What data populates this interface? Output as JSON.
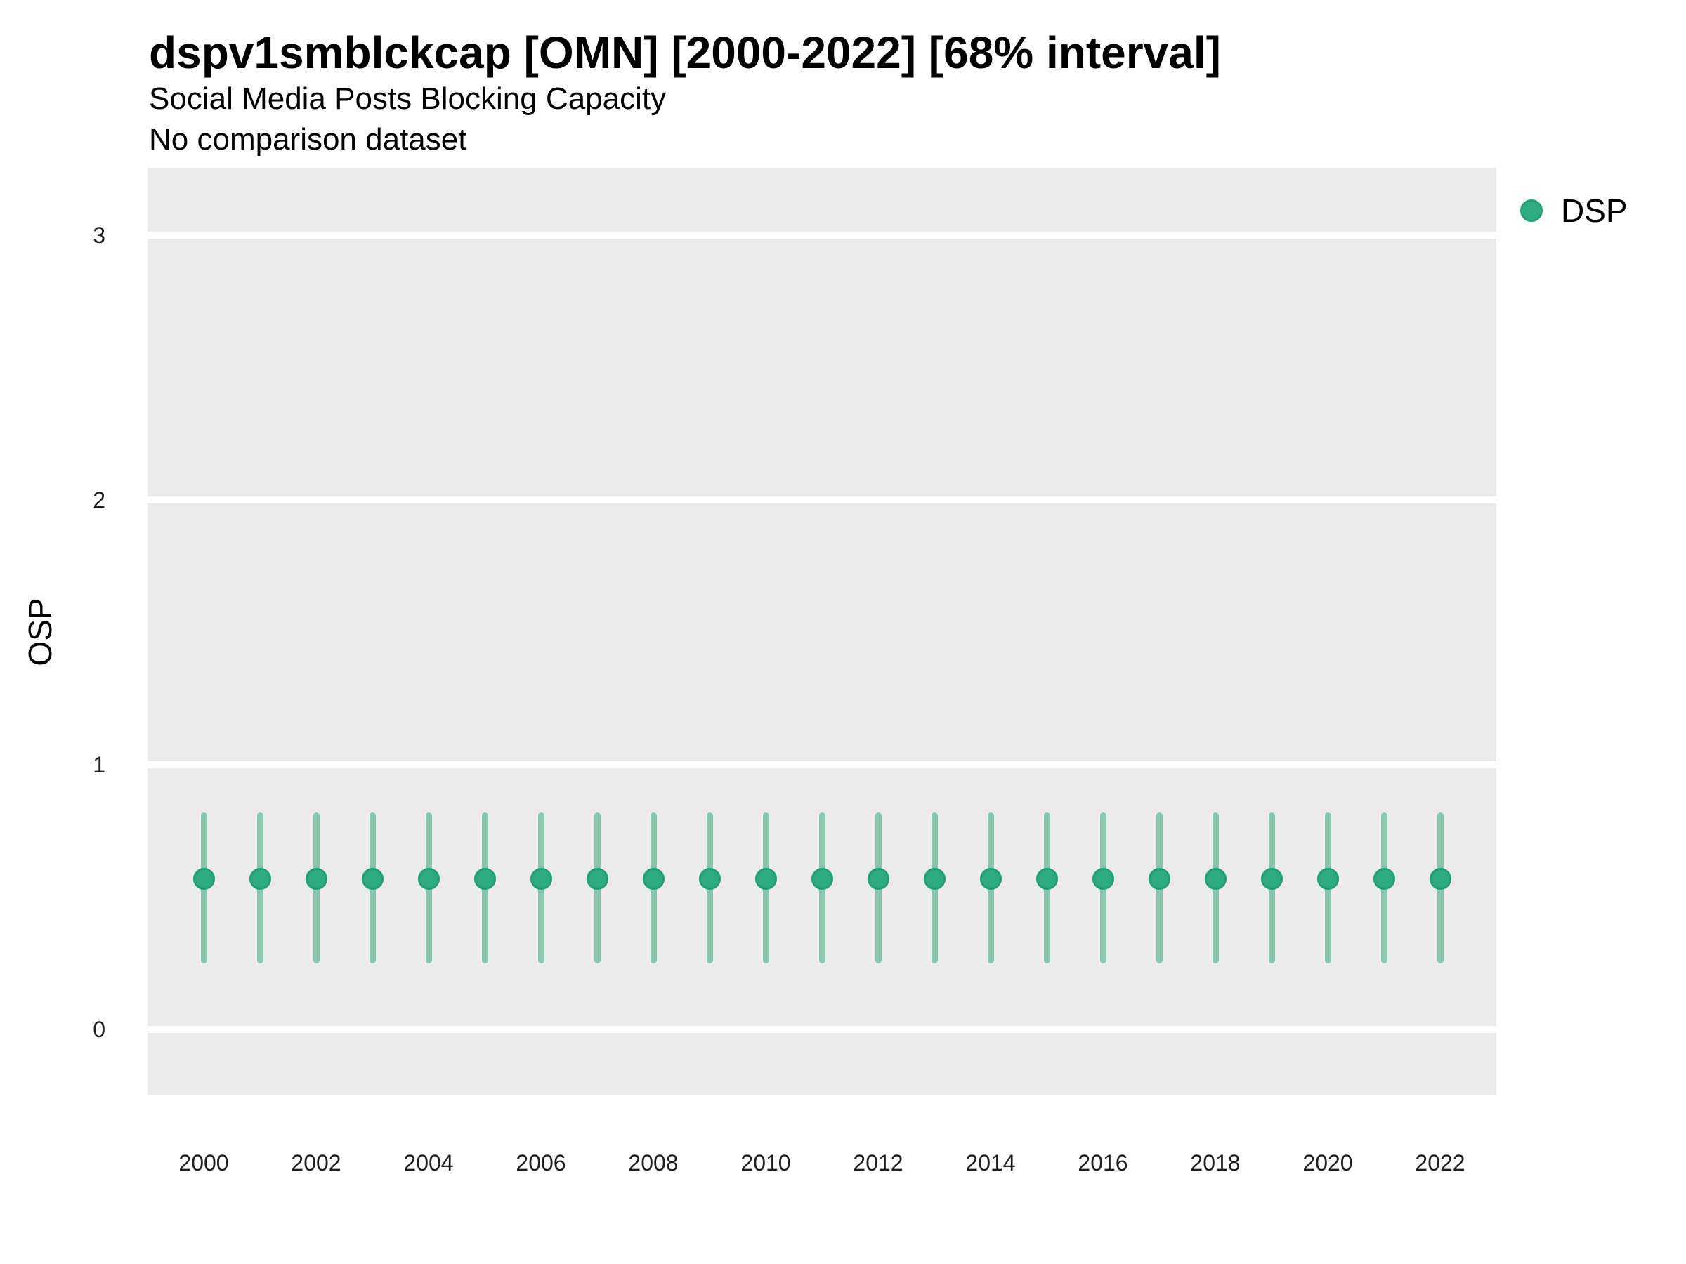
{
  "header": {
    "title": "dspv1smblckcap [OMN] [2000-2022] [68% interval]",
    "subtitle": "Social Media Posts Blocking Capacity",
    "subtitle2": "No comparison dataset"
  },
  "y_axis": {
    "label": "OSP",
    "tick_labels": [
      "0",
      "1",
      "2",
      "3"
    ],
    "tick_values": [
      0,
      1,
      2,
      3
    ]
  },
  "x_axis": {
    "tick_labels": [
      "2000",
      "2002",
      "2004",
      "2006",
      "2008",
      "2010",
      "2012",
      "2014",
      "2016",
      "2018",
      "2020",
      "2022"
    ],
    "tick_values": [
      2000,
      2002,
      2004,
      2006,
      2008,
      2010,
      2012,
      2014,
      2016,
      2018,
      2020,
      2022
    ]
  },
  "legend": {
    "items": [
      {
        "label": "DSP",
        "color": "#2FAB81",
        "ring_color": "#1F9F74"
      }
    ]
  },
  "colors": {
    "panel_background": "#EBEBEB",
    "gridline": "#FFFFFF",
    "errorbar": "#87C7AD",
    "point_fill": "#2FAB81",
    "point_ring": "#1F9F74"
  },
  "chart_data": {
    "type": "scatter",
    "subtype": "point-interval",
    "title": "dspv1smblckcap [OMN] [2000-2022] [68% interval]",
    "subtitle": "Social Media Posts Blocking Capacity",
    "note": "No comparison dataset",
    "interval": "68%",
    "xlabel": "",
    "ylabel": "OSP",
    "xlim": [
      1999,
      2023
    ],
    "ylim": [
      -0.25,
      3.25
    ],
    "grid": "major-horizontal-only",
    "legend_position": "right",
    "series": [
      {
        "name": "DSP",
        "x": [
          2000,
          2001,
          2002,
          2003,
          2004,
          2005,
          2006,
          2007,
          2008,
          2009,
          2010,
          2011,
          2012,
          2013,
          2014,
          2015,
          2016,
          2017,
          2018,
          2019,
          2020,
          2021,
          2022
        ],
        "y": [
          0.57,
          0.57,
          0.57,
          0.57,
          0.57,
          0.57,
          0.57,
          0.57,
          0.57,
          0.57,
          0.57,
          0.57,
          0.57,
          0.57,
          0.57,
          0.57,
          0.57,
          0.57,
          0.57,
          0.57,
          0.57,
          0.57,
          0.57
        ],
        "y_lo": [
          0.25,
          0.25,
          0.25,
          0.25,
          0.25,
          0.25,
          0.25,
          0.25,
          0.25,
          0.25,
          0.25,
          0.25,
          0.25,
          0.25,
          0.25,
          0.25,
          0.25,
          0.25,
          0.25,
          0.25,
          0.25,
          0.25,
          0.25
        ],
        "y_hi": [
          0.82,
          0.82,
          0.82,
          0.82,
          0.82,
          0.82,
          0.82,
          0.82,
          0.82,
          0.82,
          0.82,
          0.82,
          0.82,
          0.82,
          0.82,
          0.82,
          0.82,
          0.82,
          0.82,
          0.82,
          0.82,
          0.82,
          0.82
        ]
      }
    ]
  }
}
